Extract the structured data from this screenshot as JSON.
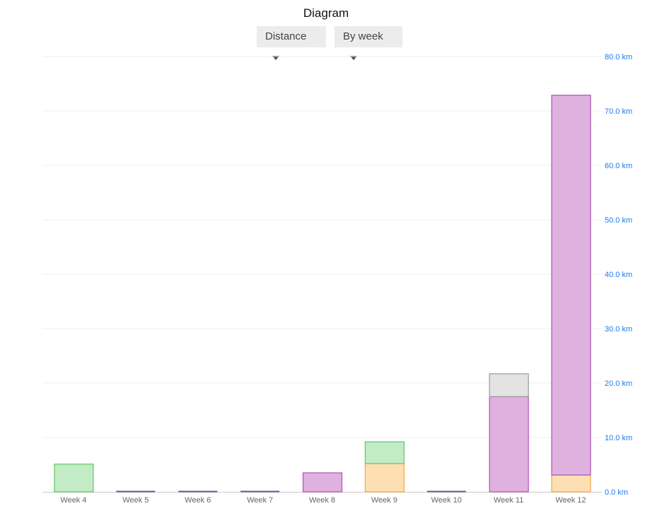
{
  "header": {
    "title": "Diagram",
    "metric_select": "Distance",
    "period_select": "By week"
  },
  "chart_data": {
    "type": "bar",
    "stacked": true,
    "title": "Diagram",
    "categories": [
      "Week 4",
      "Week 5",
      "Week 6",
      "Week 7",
      "Week 8",
      "Week 9",
      "Week 10",
      "Week 11",
      "Week 12"
    ],
    "series": [
      {
        "color": "#f5a742",
        "fill": "#fddfb3",
        "values": [
          0,
          0,
          0,
          0,
          0,
          5.2,
          0,
          0,
          3.1
        ]
      },
      {
        "color": "#b24fc0",
        "fill": "#dfb1df",
        "values": [
          0,
          0,
          0,
          0,
          3.5,
          0,
          0,
          17.5,
          69.8
        ]
      },
      {
        "color": "#5ec866",
        "fill": "#c3ebc5",
        "values": [
          5.1,
          0,
          0,
          0,
          0,
          4.0,
          0,
          0,
          0
        ]
      },
      {
        "color": "#999999",
        "fill": "#e3e3e3",
        "values": [
          0,
          0,
          0,
          0,
          0,
          0,
          0,
          4.2,
          0
        ]
      }
    ],
    "zero_marker_color": "#5a5f9a",
    "ylim": [
      0,
      80
    ],
    "yticks": [
      "0.0 km",
      "10.0 km",
      "20.0 km",
      "30.0 km",
      "40.0 km",
      "50.0 km",
      "60.0 km",
      "70.0 km",
      "80.0 km"
    ],
    "ytick_color": "#1a7cf0",
    "yaxis_position": "right",
    "grid": true,
    "legend": "none"
  }
}
